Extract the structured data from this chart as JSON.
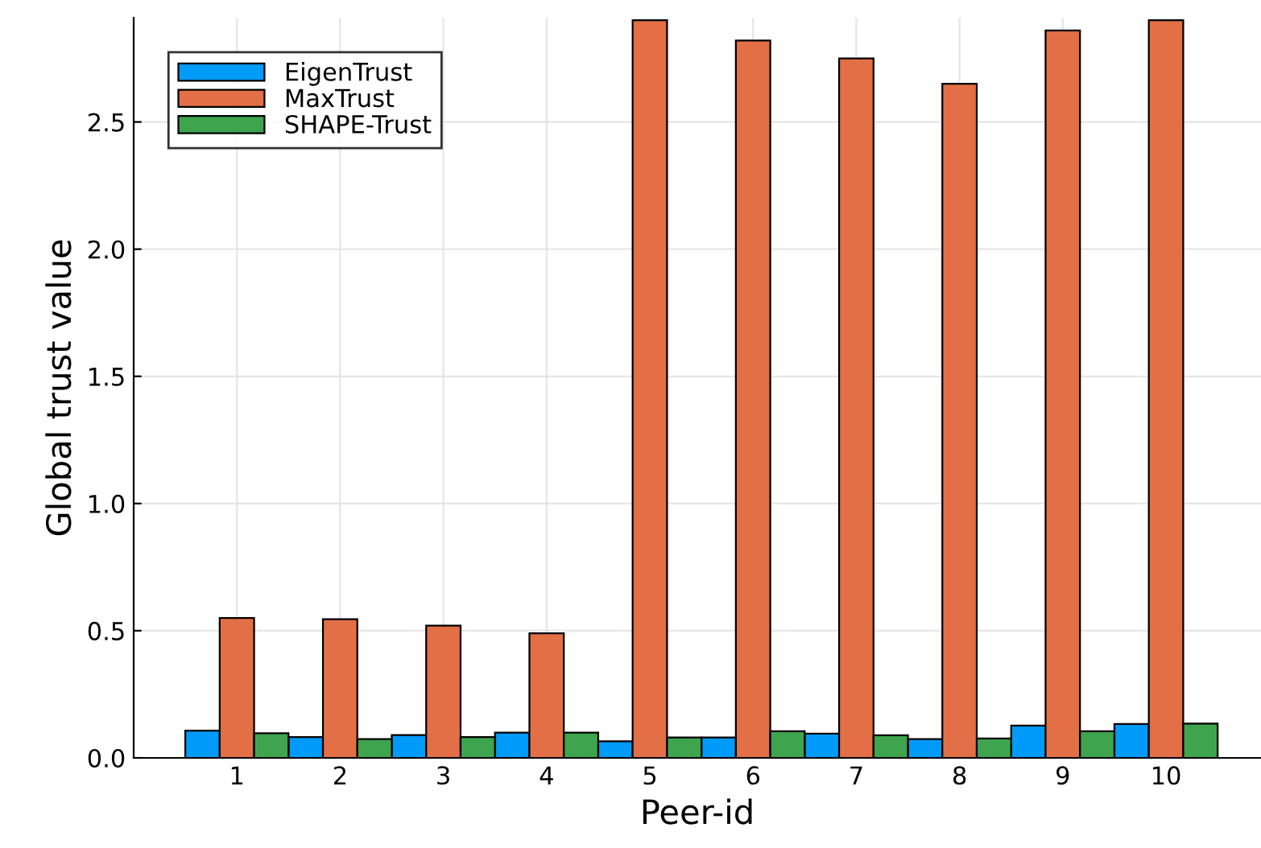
{
  "chart_data": {
    "type": "bar",
    "xlabel": "Peer-id",
    "ylabel": "Global trust value",
    "categories": [
      "1",
      "2",
      "3",
      "4",
      "5",
      "6",
      "7",
      "8",
      "9",
      "10"
    ],
    "series": [
      {
        "name": "EigenTrust",
        "color": "#009af9",
        "values": [
          0.107,
          0.082,
          0.09,
          0.099,
          0.065,
          0.08,
          0.095,
          0.074,
          0.127,
          0.133
        ]
      },
      {
        "name": "MaxTrust",
        "color": "#e26f46",
        "values": [
          0.55,
          0.545,
          0.52,
          0.49,
          2.9,
          2.82,
          2.75,
          2.65,
          2.86,
          2.9
        ]
      },
      {
        "name": "SHAPE-Trust",
        "color": "#3ea44e",
        "values": [
          0.097,
          0.074,
          0.082,
          0.099,
          0.08,
          0.105,
          0.089,
          0.076,
          0.105,
          0.135
        ]
      }
    ],
    "ylim": [
      0,
      2.91
    ],
    "yticks": [
      {
        "value": 0,
        "label": "0.0"
      },
      0.5,
      {
        "value": 1,
        "label": "1.0"
      },
      1.5,
      {
        "value": 2,
        "label": "2.0"
      },
      2.5
    ],
    "grid": true,
    "legend": "top left"
  }
}
